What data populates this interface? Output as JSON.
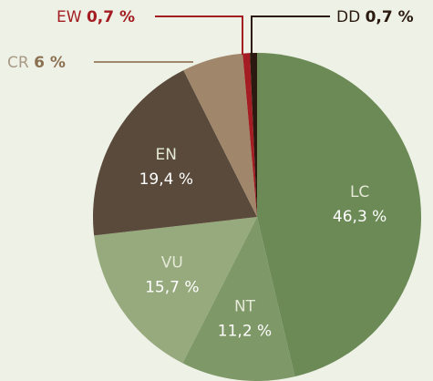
{
  "chart_data": {
    "type": "pie",
    "categories": [
      "LC",
      "NT",
      "VU",
      "EN",
      "CR",
      "EW",
      "DD"
    ],
    "values": [
      46.3,
      11.2,
      15.7,
      19.4,
      6,
      0.7,
      0.7
    ],
    "value_labels": [
      "46,3 %",
      "11,2 %",
      "15,7 %",
      "19,4 %",
      "6 %",
      "0,7 %",
      "0,7 %"
    ],
    "colors": [
      "#6b8a55",
      "#7f9868",
      "#97aa7e",
      "#5a4a3b",
      "#a0866a",
      "#a31d22",
      "#2b1a10"
    ]
  }
}
